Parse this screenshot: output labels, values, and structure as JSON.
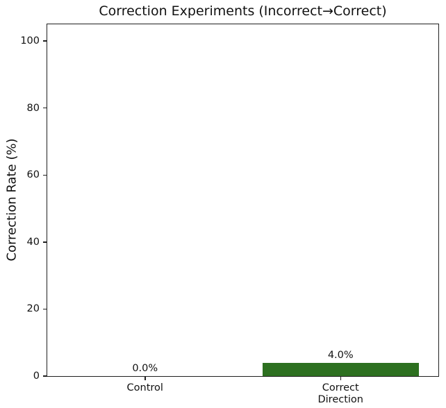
{
  "chart_data": {
    "type": "bar",
    "title": "Correction Experiments (Incorrect→Correct)",
    "ylabel": "Correction Rate (%)",
    "xlabel": "",
    "categories": [
      "Control",
      "Correct\nDirection"
    ],
    "values": [
      0.0,
      4.0
    ],
    "bar_labels": [
      "0.0%",
      "4.0%"
    ],
    "bar_color": "#2d7020",
    "yticks": [
      0,
      20,
      40,
      60,
      80,
      100
    ],
    "ylim": [
      0,
      105
    ],
    "grid": false,
    "legend": "none",
    "bar_width_fraction": 0.8
  }
}
